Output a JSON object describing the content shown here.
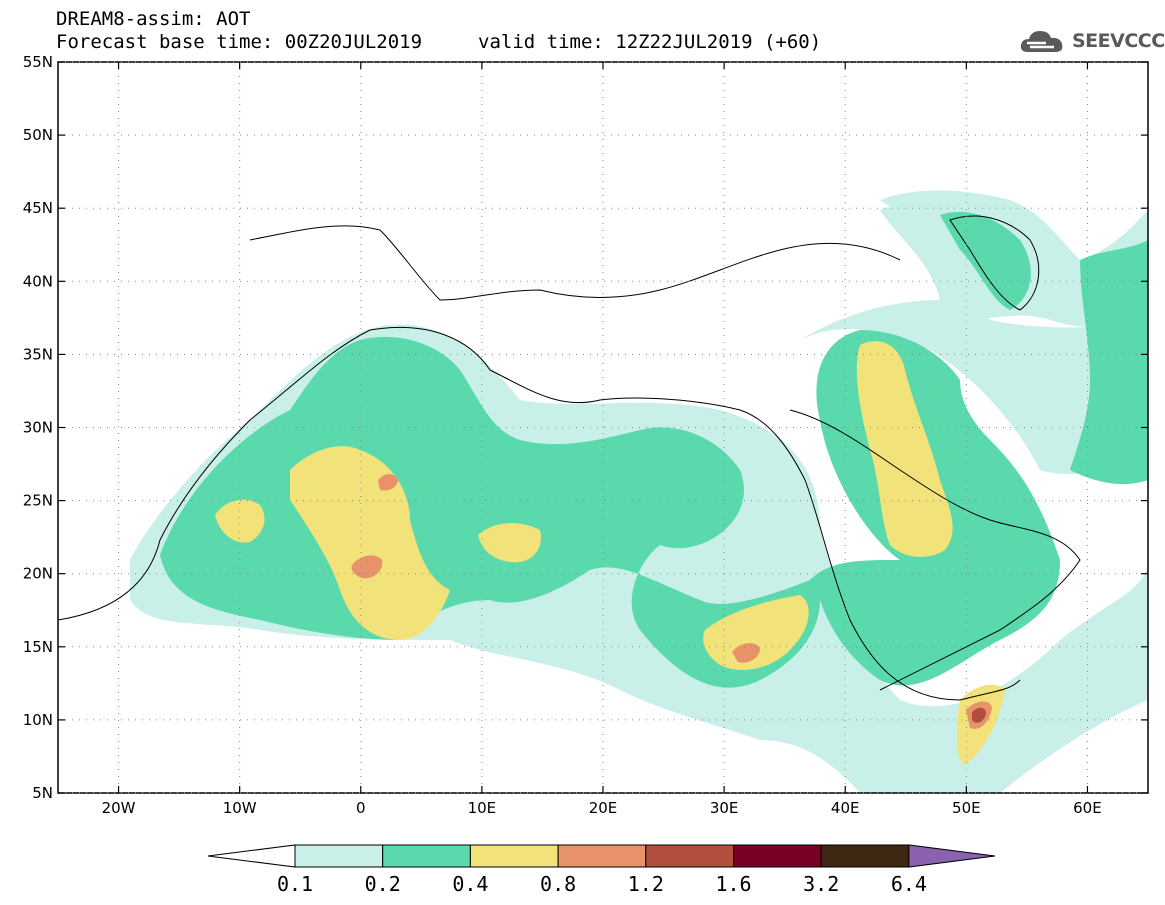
{
  "header": {
    "title": "DREAM8-assim: AOT",
    "base_time": "Forecast base time: 00Z20JUL2019",
    "valid_time": "valid time: 12Z22JUL2019 (+60)"
  },
  "logo": {
    "text": "SEEVCCC",
    "icon": "cloud-icon"
  },
  "map": {
    "lon_range": [
      -25,
      65
    ],
    "lat_range": [
      5,
      55
    ],
    "lat_labels": [
      "55N",
      "50N",
      "45N",
      "40N",
      "35N",
      "30N",
      "25N",
      "20N",
      "15N",
      "10N",
      "5N"
    ],
    "lon_labels": [
      "20W",
      "10W",
      "0",
      "10E",
      "20E",
      "30E",
      "40E",
      "50E",
      "60E"
    ]
  },
  "colorbar": {
    "levels": [
      "0.1",
      "0.2",
      "0.4",
      "0.8",
      "1.2",
      "1.6",
      "3.2",
      "6.4"
    ],
    "colors": [
      "#c8f0e8",
      "#5ad9ad",
      "#f2e27a",
      "#e8926a",
      "#b24e3c",
      "#780022",
      "#3e2814",
      "#8a62ae"
    ],
    "under_color": "#ffffff"
  },
  "legend_colors": {
    "aot_01_02": "#c8f0e8",
    "aot_02_04": "#5ad9ad",
    "aot_04_08": "#f2e27a",
    "aot_08_12": "#e8926a",
    "aot_12_16": "#b24e3c"
  }
}
